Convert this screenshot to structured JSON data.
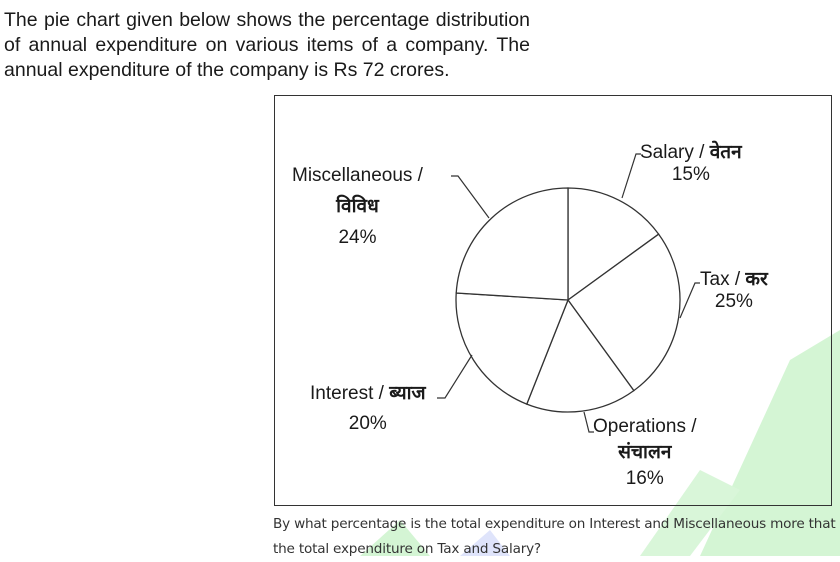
{
  "intro_text": "The pie chart given below shows the percentage distribution of annual expenditure on various items of a company. The annual expenditure of the company is Rs 72 crores.",
  "chart_data": {
    "type": "pie",
    "start": "top, clockwise",
    "slices": [
      {
        "label": "Salary / वेतन",
        "english": "Salary /",
        "hindi": "वेतन",
        "value": 15,
        "value_label": "15%"
      },
      {
        "label": "Tax / कर",
        "english": "Tax /",
        "hindi": "कर",
        "value": 25,
        "value_label": "25%"
      },
      {
        "label": "Operations / संचालन",
        "english": "Operations /",
        "hindi": "संचालन",
        "value": 16,
        "value_label": "16%"
      },
      {
        "label": "Interest / ब्याज",
        "english": "Interest /",
        "hindi": "ब्याज",
        "value": 20,
        "value_label": "20%"
      },
      {
        "label": "Miscellaneous / विविध",
        "english": "Miscellaneous /",
        "hindi": "विविध",
        "value": 24,
        "value_label": "24%"
      }
    ],
    "fill": "#ffffff",
    "stroke": "#333333"
  },
  "question": "By what percentage is the total expenditure on Interest and Miscellaneous more that the total expenditure on Tax and Salary?",
  "watermark_color": "#c9f1c9"
}
